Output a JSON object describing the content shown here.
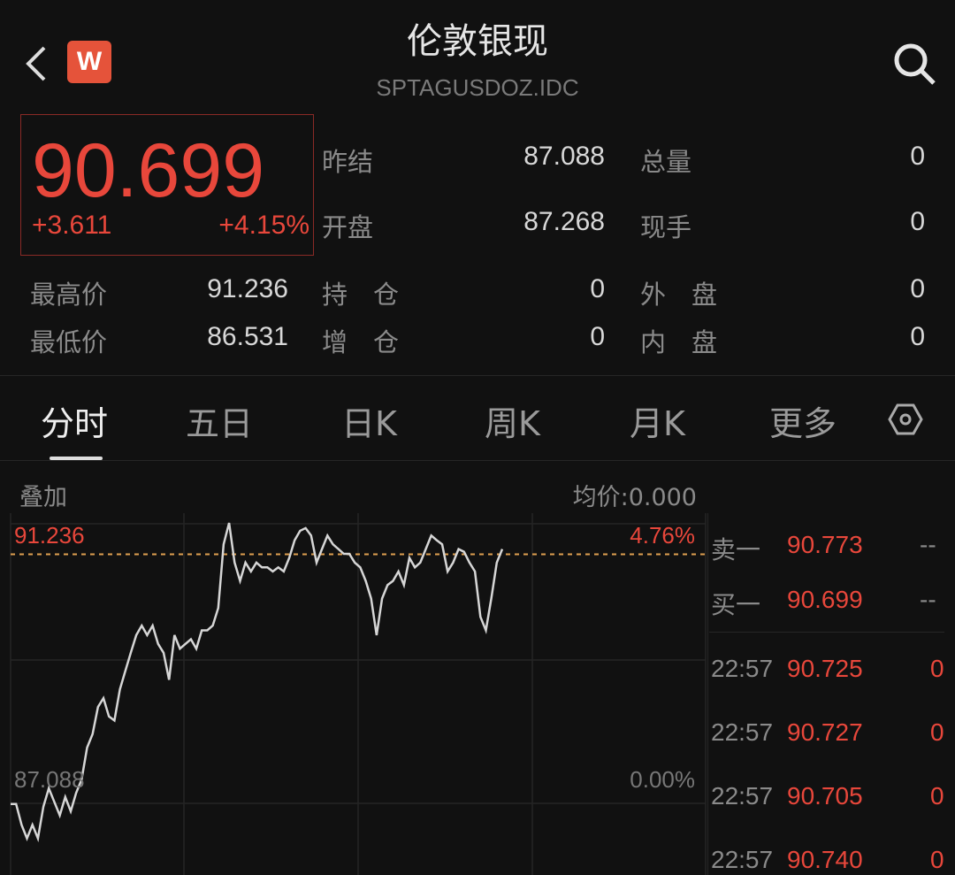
{
  "header": {
    "title": "伦敦银现",
    "symbol": "SPTAGUSDOZ.IDC",
    "logo": "W",
    "back_icon": "chevron-left-icon",
    "search_icon": "search-icon"
  },
  "quote": {
    "price": "90.699",
    "change": "+3.611",
    "change_pct": "+4.15%",
    "fields": [
      {
        "label": "昨结",
        "value": "87.088"
      },
      {
        "label": "总量",
        "value": "0"
      },
      {
        "label": "开盘",
        "value": "87.268"
      },
      {
        "label": "现手",
        "value": "0"
      },
      {
        "label": "最高价",
        "value": "91.236"
      },
      {
        "label": "持　仓",
        "value": "0"
      },
      {
        "label": "外　盘",
        "value": "0"
      },
      {
        "label": "最低价",
        "value": "86.531"
      },
      {
        "label": "增　仓",
        "value": "0"
      },
      {
        "label": "内　盘",
        "value": "0"
      }
    ]
  },
  "tabs": [
    {
      "label": "分时",
      "active": true
    },
    {
      "label": "五日"
    },
    {
      "label": "日K"
    },
    {
      "label": "周K"
    },
    {
      "label": "月K"
    },
    {
      "label": "更多"
    }
  ],
  "tabs_settings_icon": "hexagon-settings-icon",
  "chart_bar": {
    "overlay": "叠加",
    "avg_price": "均价:0.000"
  },
  "chart_data": {
    "type": "line",
    "y_top_label": "91.236",
    "y_top_pct": "4.76%",
    "y_ref_label": "87.088",
    "y_ref_pct": "0.00%",
    "ylim": [
      86.04,
      91.38
    ],
    "reference": 87.088,
    "dashed_line": 90.773,
    "grid": true,
    "line_color": "#d6d6d6",
    "dash_color": "#e0a050",
    "values": [
      87.088,
      87.088,
      86.78,
      86.58,
      86.78,
      86.58,
      87.05,
      87.32,
      87.12,
      86.92,
      87.19,
      86.98,
      87.25,
      87.45,
      87.92,
      88.12,
      88.52,
      88.65,
      88.38,
      88.32,
      88.78,
      89.05,
      89.32,
      89.58,
      89.72,
      89.58,
      89.72,
      89.45,
      89.32,
      88.92,
      89.58,
      89.38,
      89.45,
      89.52,
      89.38,
      89.65,
      89.65,
      89.72,
      89.98,
      90.92,
      91.236,
      90.65,
      90.38,
      90.65,
      90.52,
      90.65,
      90.58,
      90.58,
      90.52,
      90.58,
      90.52,
      90.72,
      90.98,
      91.12,
      91.16,
      91.05,
      90.65,
      90.85,
      91.05,
      90.92,
      90.85,
      90.78,
      90.78,
      90.65,
      90.58,
      90.38,
      90.12,
      89.58,
      90.12,
      90.32,
      90.38,
      90.52,
      90.32,
      90.72,
      90.58,
      90.65,
      90.85,
      91.05,
      90.98,
      90.92,
      90.52,
      90.65,
      90.85,
      90.81,
      90.65,
      90.52,
      89.85,
      89.65,
      90.12,
      90.65,
      90.85
    ]
  },
  "orderbook": {
    "ask": {
      "label": "卖一",
      "price": "90.773",
      "vol": "--"
    },
    "bid": {
      "label": "买一",
      "price": "90.699",
      "vol": "--"
    },
    "ticks": [
      {
        "time": "22:57",
        "price": "90.725",
        "vol": "0"
      },
      {
        "time": "22:57",
        "price": "90.727",
        "vol": "0"
      },
      {
        "time": "22:57",
        "price": "90.705",
        "vol": "0"
      },
      {
        "time": "22:57",
        "price": "90.740",
        "vol": "0"
      }
    ]
  },
  "colors": {
    "up": "#e8473b",
    "bg": "#111111"
  }
}
